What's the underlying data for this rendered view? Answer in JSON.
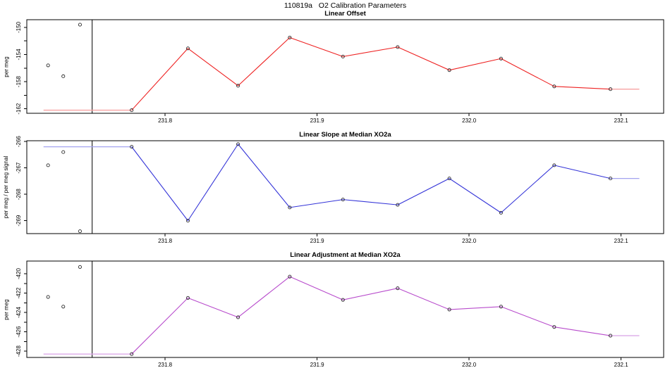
{
  "title": "110819a   O2 Calibration Parameters",
  "background": "#ffffff",
  "axis_color": "#000000",
  "marker_color": "#2a2a2a",
  "vline_color": "#000000",
  "chart_data": [
    {
      "type": "line",
      "title": "Linear Offset",
      "ylabel": "per meg",
      "line_color": "#ee2222",
      "faint_color": "#f7a2a2",
      "xlim": [
        231.709,
        232.128
      ],
      "ylim": [
        -162.66,
        -148.87
      ],
      "x_ticks": [
        231.8,
        231.9,
        232.0,
        232.1
      ],
      "x_tick_labels": [
        "231.8",
        "231.9",
        "232.0",
        "232.1"
      ],
      "y_ticks_labeled": [
        -150,
        -154,
        -158,
        -162
      ],
      "y_ticks_minor": [
        -152,
        -156,
        -160
      ],
      "x": [
        231.778,
        231.815,
        231.848,
        231.882,
        231.917,
        231.953,
        231.987,
        232.021,
        232.056,
        232.093
      ],
      "y": [
        -162.2,
        -153.1,
        -158.6,
        -151.5,
        -154.3,
        -152.9,
        -156.3,
        -154.6,
        -158.7,
        -159.1
      ],
      "pre_x": [
        231.723,
        231.733,
        231.744
      ],
      "pre_y": [
        -155.6,
        -157.2,
        -149.6
      ],
      "baseline_value": -162.2,
      "baseline_x_start": 231.72,
      "tail_end_x": 232.112,
      "vline_x": 231.752
    },
    {
      "type": "line",
      "title": "Linear Slope at Median XO2a",
      "ylabel": "per meg / per meg signal",
      "line_color": "#3535d8",
      "faint_color": "#a2a2ef",
      "xlim": [
        231.709,
        232.128
      ],
      "ylim": [
        -269.49,
        -265.97
      ],
      "x_ticks": [
        231.8,
        231.9,
        232.0,
        232.1
      ],
      "x_tick_labels": [
        "231.8",
        "231.9",
        "232.0",
        "232.1"
      ],
      "y_ticks_labeled": [
        -266,
        -267,
        -268,
        -269
      ],
      "y_ticks_minor": [],
      "x": [
        231.778,
        231.815,
        231.848,
        231.882,
        231.917,
        231.953,
        231.987,
        232.021,
        232.056,
        232.093
      ],
      "y": [
        -266.2,
        -269.0,
        -266.1,
        -268.5,
        -268.2,
        -268.4,
        -267.4,
        -268.7,
        -266.9,
        -267.4
      ],
      "pre_x": [
        231.723,
        231.733,
        231.744
      ],
      "pre_y": [
        -266.9,
        -266.4,
        -269.4
      ],
      "baseline_value": -266.2,
      "baseline_x_start": 231.72,
      "tail_end_x": 232.112,
      "vline_x": 231.752
    },
    {
      "type": "line",
      "title": "Linear Adjustment at Median XO2a",
      "ylabel": "per meg",
      "line_color": "#b84ccc",
      "faint_color": "#dcaae8",
      "xlim": [
        231.709,
        232.128
      ],
      "ylim": [
        -428.65,
        -418.69
      ],
      "x_ticks": [
        231.8,
        231.9,
        232.0,
        232.1
      ],
      "x_tick_labels": [
        "231.8",
        "231.9",
        "232.0",
        "232.1"
      ],
      "y_ticks_labeled": [
        -420,
        -422,
        -424,
        -426,
        -428
      ],
      "y_ticks_minor": [
        -421,
        -423,
        -425,
        -427
      ],
      "x": [
        231.778,
        231.815,
        231.848,
        231.882,
        231.917,
        231.953,
        231.987,
        232.021,
        232.056,
        232.093
      ],
      "y": [
        -428.3,
        -422.5,
        -424.5,
        -420.3,
        -422.7,
        -421.5,
        -423.7,
        -423.4,
        -425.5,
        -426.4
      ],
      "pre_x": [
        231.723,
        231.733,
        231.744
      ],
      "pre_y": [
        -422.4,
        -423.4,
        -419.3
      ],
      "baseline_value": -428.3,
      "baseline_x_start": 231.72,
      "tail_end_x": 232.112,
      "vline_x": 231.752
    }
  ]
}
